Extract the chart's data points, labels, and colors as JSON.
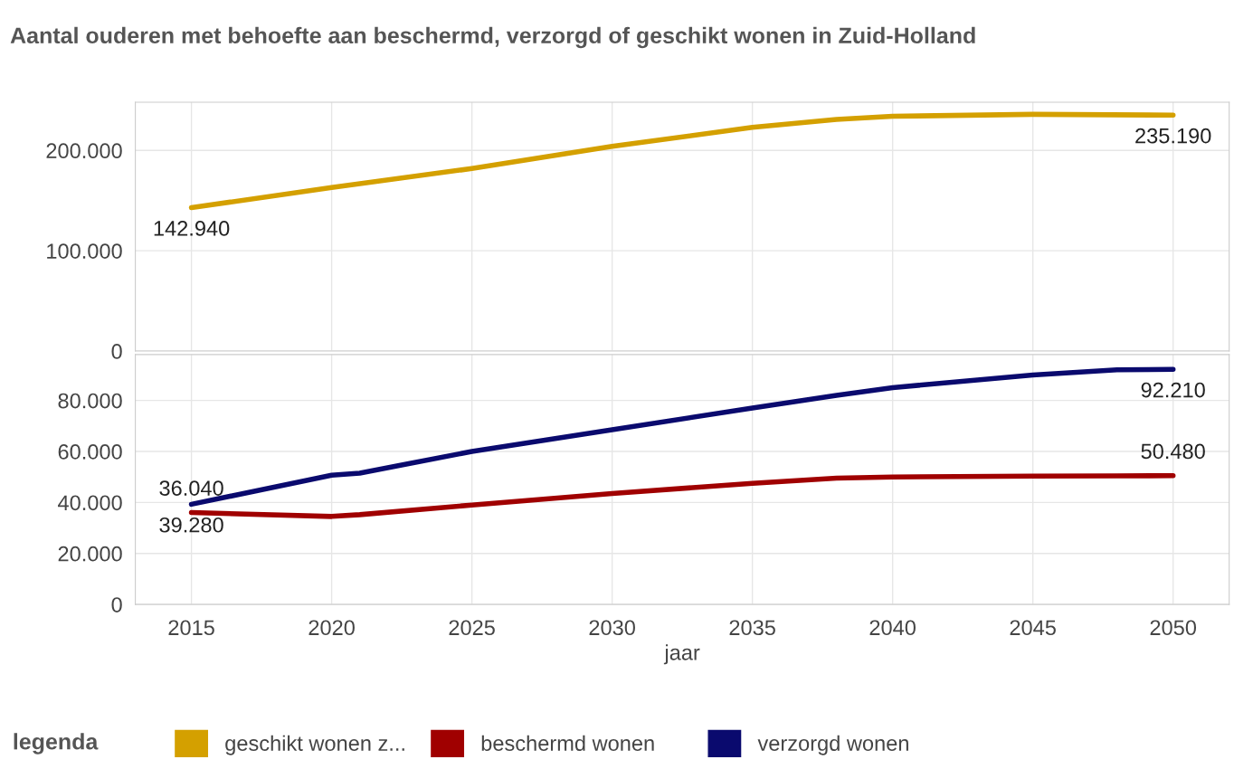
{
  "chart_data": [
    {
      "type": "line",
      "title": "Aantal ouderen met behoefte aan beschermd, verzorgd of geschikt wonen in Zuid-Holland",
      "x": [
        2015,
        2020,
        2025,
        2030,
        2035,
        2038,
        2040,
        2045,
        2050
      ],
      "series": [
        {
          "name": "geschikt wonen z...",
          "color": "#d4a000",
          "values": [
            142940,
            163000,
            182000,
            204000,
            223000,
            231000,
            234000,
            236000,
            235190
          ],
          "value_labels": [
            "142.940",
            null,
            null,
            null,
            null,
            null,
            null,
            null,
            "235.190"
          ]
        }
      ],
      "xlim": [
        2013,
        2052
      ],
      "xticks": [
        2015,
        2020,
        2025,
        2030,
        2035,
        2040,
        2045,
        2050
      ],
      "ylim": [
        0,
        248000
      ],
      "yticks": [
        0,
        {
          "value": 100000,
          "label": "100.000"
        },
        {
          "value": 200000,
          "label": "200.000"
        }
      ],
      "tick_labels": "y",
      "grid": true,
      "legend": "bottom",
      "legend_title": "legenda"
    },
    {
      "type": "line",
      "xlabel": "jaar",
      "x": [
        2015,
        2020,
        2021,
        2025,
        2030,
        2035,
        2038,
        2040,
        2045,
        2048,
        2050
      ],
      "series": [
        {
          "name": "beschermd wonen",
          "color": "#a00000",
          "values": [
            36040,
            34500,
            35200,
            39000,
            43500,
            47500,
            49500,
            50000,
            50300,
            50400,
            50480
          ],
          "value_labels": [
            "36.040",
            null,
            null,
            null,
            null,
            null,
            null,
            null,
            null,
            null,
            "50.480"
          ]
        },
        {
          "name": "verzorgd wonen",
          "color": "#0a0a6e",
          "values": [
            39280,
            50700,
            51500,
            60000,
            68500,
            77000,
            82000,
            85000,
            90000,
            92000,
            92210
          ],
          "value_labels": [
            "39.280",
            null,
            null,
            null,
            null,
            null,
            null,
            null,
            null,
            null,
            "92.210"
          ]
        }
      ],
      "xlim": [
        2013,
        2052
      ],
      "xticks": [
        2015,
        2020,
        2025,
        2030,
        2035,
        2040,
        2045,
        2050
      ],
      "ylim": [
        0,
        98000
      ],
      "yticks": [
        0,
        {
          "value": 20000,
          "label": "20.000"
        },
        {
          "value": 40000,
          "label": "40.000"
        },
        {
          "value": 60000,
          "label": "60.000"
        },
        {
          "value": 80000,
          "label": "80.000"
        }
      ],
      "grid": true,
      "legend": "bottom"
    }
  ]
}
